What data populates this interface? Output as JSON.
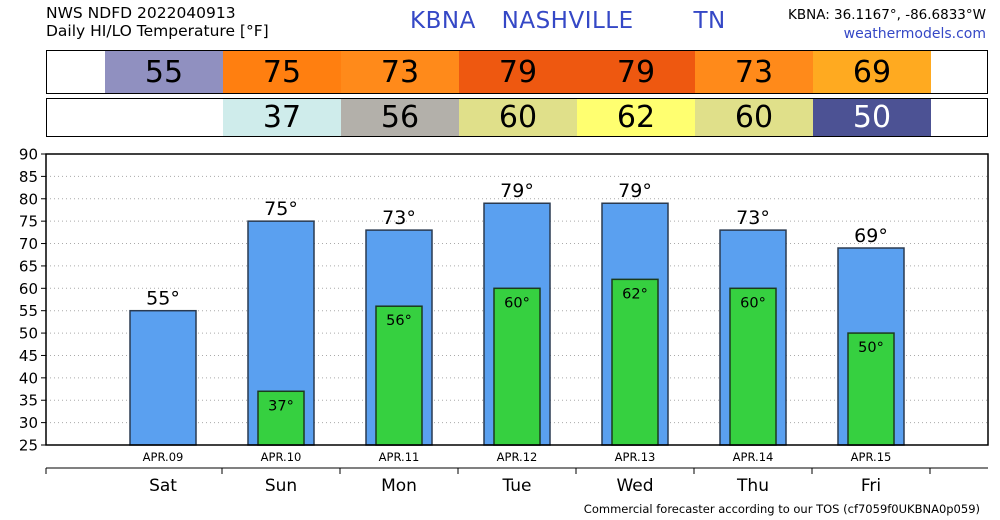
{
  "header": {
    "line1": "NWS NDFD 2022040913",
    "line2": "Daily HI/LO Temperature [°F]",
    "station": "KBNA",
    "city": "NASHVILLE",
    "state": "TN",
    "coords": "KBNA: 36.1167°, -86.6833°W",
    "site": "weathermodels.com"
  },
  "hi_band": [
    {
      "text": "55",
      "color": "#9090c0",
      "fg": "#000000"
    },
    {
      "text": "75",
      "color": "#ff7f10",
      "fg": "#000000"
    },
    {
      "text": "73",
      "color": "#ff8a1a",
      "fg": "#000000"
    },
    {
      "text": "79",
      "color": "#ee5810",
      "fg": "#000000"
    },
    {
      "text": "79",
      "color": "#ee5810",
      "fg": "#000000"
    },
    {
      "text": "73",
      "color": "#ff8a1a",
      "fg": "#000000"
    },
    {
      "text": "69",
      "color": "#ffaa20",
      "fg": "#000000"
    }
  ],
  "lo_band": [
    {
      "text": "",
      "color": "#ffffff",
      "fg": "#000000"
    },
    {
      "text": "37",
      "color": "#cfeceb",
      "fg": "#000000"
    },
    {
      "text": "56",
      "color": "#b3b0aa",
      "fg": "#000000"
    },
    {
      "text": "60",
      "color": "#e0e08a",
      "fg": "#000000"
    },
    {
      "text": "62",
      "color": "#ffff70",
      "fg": "#000000"
    },
    {
      "text": "60",
      "color": "#e0e08a",
      "fg": "#000000"
    },
    {
      "text": "50",
      "color": "#4c5294",
      "fg": "#ffffff"
    }
  ],
  "chart_data": {
    "type": "bar",
    "categories": [
      "Sat",
      "Sun",
      "Mon",
      "Tue",
      "Wed",
      "Thu",
      "Fri"
    ],
    "dates": [
      "APR.09",
      "APR.10",
      "APR.11",
      "APR.12",
      "APR.13",
      "APR.14",
      "APR.15"
    ],
    "series": [
      {
        "values": [
          55,
          75,
          73,
          79,
          79,
          73,
          69
        ],
        "labels": [
          "55°",
          "75°",
          "73°",
          "79°",
          "79°",
          "73°",
          "69°"
        ],
        "color": "#5aa0f0"
      },
      {
        "values": [
          null,
          37,
          56,
          60,
          62,
          60,
          50
        ],
        "labels": [
          "",
          "37°",
          "56°",
          "60°",
          "62°",
          "60°",
          "50°"
        ],
        "color": "#36d040"
      }
    ],
    "yticks": [
      25,
      30,
      35,
      40,
      45,
      50,
      55,
      60,
      65,
      70,
      75,
      80,
      85,
      90
    ],
    "ylim": [
      25,
      90
    ],
    "grid": true,
    "legend": "none"
  },
  "footer": "Commercial forecaster according to our TOS (cf7059f0UKBNA0p059)"
}
